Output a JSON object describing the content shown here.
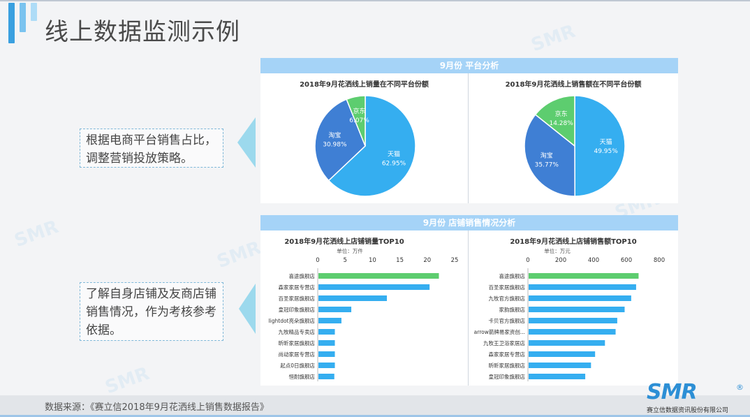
{
  "slide": {
    "title": "线上数据监测示例",
    "callout1": "根据电商平台销售占比，调整营销投放策略。",
    "callout2": "了解自身店铺及友商店铺销售情况，作为考核参考依据。",
    "source": "数据来源：《赛立信2018年9月花洒线上销售数据报告》",
    "logo_text": "SMR",
    "logo_mark": "®",
    "logo_company": "赛立信数据资讯股份有限公司",
    "watermark": "SMR",
    "colors": {
      "accent": "#2d8fd5",
      "header": "#a5d3f7",
      "bar_green": "#5dcd6f",
      "bar_blue": "#35aef0",
      "pie_tmall": "#35aef0",
      "pie_taobao": "#3f7fd4",
      "pie_jd": "#5dcd6f"
    }
  },
  "panels": {
    "platform_header": "9月份 平台分析",
    "store_header": "9月份 店铺销售情况分析"
  },
  "chart_data": [
    {
      "type": "pie",
      "title": "2018年9月花洒线上销量在不同平台份额",
      "slices": [
        {
          "label": "天猫",
          "value": 62.95,
          "text": "62.95%",
          "color": "#35aef0"
        },
        {
          "label": "淘宝",
          "value": 30.98,
          "text": "30.98%",
          "color": "#3f7fd4"
        },
        {
          "label": "京东",
          "value": 6.07,
          "text": "6.07%",
          "color": "#5dcd6f"
        }
      ]
    },
    {
      "type": "pie",
      "title": "2018年9月花洒线上销售额在不同平台份额",
      "slices": [
        {
          "label": "天猫",
          "value": 49.95,
          "text": "49.95%",
          "color": "#35aef0"
        },
        {
          "label": "淘宝",
          "value": 35.77,
          "text": "35.77%",
          "color": "#3f7fd4"
        },
        {
          "label": "京东",
          "value": 14.28,
          "text": "14.28%",
          "color": "#5dcd6f"
        }
      ]
    },
    {
      "type": "bar",
      "orientation": "horizontal",
      "title": "2018年9月花洒线上店铺销量TOP10",
      "unit": "单位：万件",
      "xlim": [
        0,
        25
      ],
      "ticks": [
        0,
        5,
        10,
        15,
        20,
        25
      ],
      "categories": [
        "喜途旗舰店",
        "森家家居专营店",
        "百圣家居旗舰店",
        "皇冠印象旗舰店",
        "lightdot亮朵旗舰店",
        "九牧精品专卖店",
        "昕昕家居旗舰店",
        "尚动家居专营店",
        "起点0日旗舰店",
        "恒耐旗舰店"
      ],
      "values": [
        22.0,
        20.3,
        12.5,
        6.0,
        4.2,
        3.0,
        3.0,
        3.0,
        3.0,
        2.9
      ],
      "highlight_index": 0
    },
    {
      "type": "bar",
      "orientation": "horizontal",
      "title": "2018年9月花洒线上店铺销售额TOP10",
      "unit": "单位：万元",
      "xlim": [
        0,
        800
      ],
      "ticks": [
        0,
        200,
        400,
        600,
        800
      ],
      "categories": [
        "喜途旗舰店",
        "百圣家居旗舰店",
        "九牧官方旗舰店",
        "家韵旗舰店",
        "卡贝官方旗舰店",
        "arrow箭牌易家资创...",
        "九牧王卫浴家居店",
        "森家家居专营店",
        "昕昕家居旗舰店",
        "皇冠印象旗舰店"
      ],
      "values": [
        670,
        655,
        625,
        585,
        540,
        530,
        465,
        405,
        380,
        345
      ],
      "highlight_index": 0
    }
  ]
}
